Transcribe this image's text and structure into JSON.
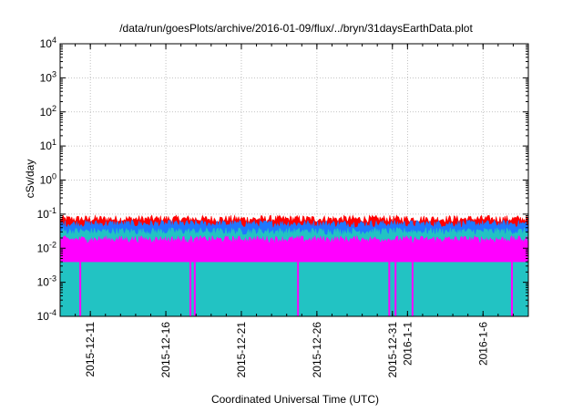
{
  "chart_data": {
    "type": "area",
    "title": "/data/run/goesPlots/archive/2016-01-09/flux/../bryn/31daysEarthData.plot",
    "xlabel": "Coordinated Universal Time (UTC)",
    "ylabel": "cSv/day",
    "yscale": "log",
    "ylim": [
      0.0001,
      10000
    ],
    "y_ticks": [
      {
        "value": 0.0001,
        "base": "10",
        "exp": "-4"
      },
      {
        "value": 0.001,
        "base": "10",
        "exp": "-3"
      },
      {
        "value": 0.01,
        "base": "10",
        "exp": "-2"
      },
      {
        "value": 0.1,
        "base": "10",
        "exp": "-1"
      },
      {
        "value": 1,
        "base": "10",
        "exp": "0"
      },
      {
        "value": 10,
        "base": "10",
        "exp": "1"
      },
      {
        "value": 100,
        "base": "10",
        "exp": "2"
      },
      {
        "value": 1000,
        "base": "10",
        "exp": "3"
      },
      {
        "value": 10000,
        "base": "10",
        "exp": "4"
      }
    ],
    "xlim": [
      "2015-12-09",
      "2016-01-09"
    ],
    "x_ticks": [
      "2015-12-11",
      "2015-12-16",
      "2015-12-21",
      "2015-12-26",
      "2015-12-31",
      "2016-1-1",
      "2016-1-6"
    ],
    "x_tick_dates": [
      "2015-12-11",
      "2015-12-16",
      "2015-12-21",
      "2015-12-26",
      "2015-12-31",
      "2016-01-01",
      "2016-01-06"
    ],
    "grid": true,
    "legend": "none",
    "series": [
      {
        "color": "#ff0000",
        "x": [
          "2015-12-09",
          "2015-12-12",
          "2015-12-15",
          "2015-12-18",
          "2015-12-21",
          "2015-12-24",
          "2015-12-27",
          "2015-12-30",
          "2016-01-01",
          "2016-01-02",
          "2016-01-02T12:00",
          "2016-01-03",
          "2016-01-04",
          "2016-01-06",
          "2016-01-09"
        ],
        "y": [
          0.075,
          0.07,
          0.075,
          0.072,
          0.07,
          0.073,
          0.07,
          0.068,
          0.065,
          0.12,
          0.42,
          0.12,
          0.075,
          0.072,
          0.072
        ]
      },
      {
        "color": "#1e78ff",
        "x": [
          "2015-12-09",
          "2015-12-12",
          "2015-12-15",
          "2015-12-18",
          "2015-12-21",
          "2015-12-24",
          "2015-12-27",
          "2015-12-30",
          "2016-01-01",
          "2016-01-02",
          "2016-01-02T12:00",
          "2016-01-03",
          "2016-01-04",
          "2016-01-06",
          "2016-01-09"
        ],
        "y": [
          0.055,
          0.05,
          0.055,
          0.052,
          0.05,
          0.053,
          0.05,
          0.049,
          0.047,
          0.09,
          0.3,
          0.09,
          0.055,
          0.052,
          0.052
        ]
      },
      {
        "color": "#22c3c3",
        "x": [
          "2015-12-09",
          "2015-12-12",
          "2015-12-15",
          "2015-12-18",
          "2015-12-21",
          "2015-12-24",
          "2015-12-27",
          "2015-12-30",
          "2016-01-01",
          "2016-01-02",
          "2016-01-02T12:00",
          "2016-01-03",
          "2016-01-04",
          "2016-01-06",
          "2016-01-09"
        ],
        "y": [
          0.032,
          0.03,
          0.032,
          0.031,
          0.03,
          0.031,
          0.03,
          0.029,
          0.028,
          0.045,
          0.08,
          0.045,
          0.032,
          0.031,
          0.031
        ]
      },
      {
        "color": "#ff00ff",
        "x": [
          "2015-12-09",
          "2015-12-12",
          "2015-12-15",
          "2015-12-18",
          "2015-12-21",
          "2015-12-24",
          "2015-12-27",
          "2015-12-30",
          "2016-01-01",
          "2016-01-02",
          "2016-01-02T12:00",
          "2016-01-03",
          "2016-01-04",
          "2016-01-06",
          "2016-01-09"
        ],
        "y": [
          0.018,
          0.018,
          0.019,
          0.018,
          0.018,
          0.018,
          0.018,
          0.018,
          0.017,
          0.02,
          0.025,
          0.02,
          0.018,
          0.018,
          0.018
        ],
        "floor": 0.004,
        "dropouts_to": 0.0001,
        "dropouts": [
          "2015-12-10T08:00",
          "2015-12-17T15:00",
          "2015-12-17T22:00",
          "2015-12-24T18:00",
          "2015-12-30T19:00",
          "2015-12-31T05:00",
          "2016-01-01T08:00",
          "2016-01-07T22:00"
        ]
      }
    ]
  }
}
